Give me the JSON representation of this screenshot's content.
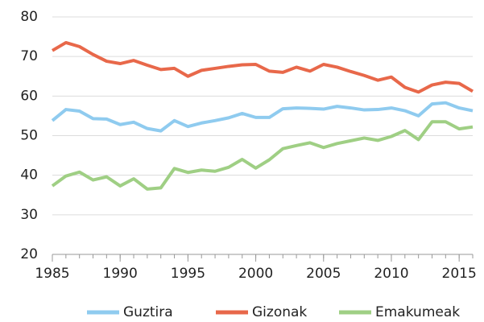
{
  "chart_data": {
    "type": "line",
    "x": [
      1985,
      1986,
      1987,
      1988,
      1989,
      1990,
      1991,
      1992,
      1993,
      1994,
      1995,
      1996,
      1997,
      1998,
      1999,
      2000,
      2001,
      2002,
      2003,
      2004,
      2005,
      2006,
      2007,
      2008,
      2009,
      2010,
      2011,
      2012,
      2013,
      2014,
      2015,
      2016
    ],
    "series": [
      {
        "name": "Guztira",
        "color": "#8fcbef",
        "values": [
          53.8,
          56.6,
          56.2,
          54.3,
          54.2,
          52.8,
          53.4,
          51.8,
          51.2,
          53.8,
          52.3,
          53.2,
          53.8,
          54.5,
          55.6,
          54.6,
          54.6,
          56.8,
          57.0,
          56.9,
          56.7,
          57.4,
          57.0,
          56.5,
          56.6,
          57.0,
          56.3,
          55.0,
          58.0,
          58.3,
          57.0,
          56.3
        ]
      },
      {
        "name": "Gizonak",
        "color": "#e8684a",
        "values": [
          71.5,
          73.5,
          72.5,
          70.5,
          68.8,
          68.2,
          69.0,
          67.8,
          66.7,
          67.0,
          65.0,
          66.5,
          67.0,
          67.5,
          67.9,
          68.0,
          66.3,
          66.0,
          67.3,
          66.3,
          68.0,
          67.3,
          66.2,
          65.2,
          64.0,
          64.8,
          62.2,
          61.0,
          62.8,
          63.5,
          63.2,
          61.2
        ]
      },
      {
        "name": "Emakumeak",
        "color": "#9fcf84",
        "values": [
          37.3,
          39.8,
          40.8,
          38.8,
          39.6,
          37.3,
          39.1,
          36.5,
          36.8,
          41.7,
          40.7,
          41.3,
          41.0,
          42.0,
          44.0,
          41.8,
          43.9,
          46.7,
          47.5,
          48.2,
          47.0,
          48.0,
          48.7,
          49.4,
          48.8,
          49.8,
          51.3,
          49.0,
          53.5,
          53.5,
          51.7,
          52.2
        ]
      }
    ],
    "xlim": [
      1985,
      2016
    ],
    "xticks": [
      1985,
      1990,
      1995,
      2000,
      2005,
      2010,
      2015
    ],
    "ylim": [
      20,
      80
    ],
    "yticks": [
      20,
      30,
      40,
      50,
      60,
      70,
      80
    ],
    "grid": true,
    "legend": "bottom"
  }
}
